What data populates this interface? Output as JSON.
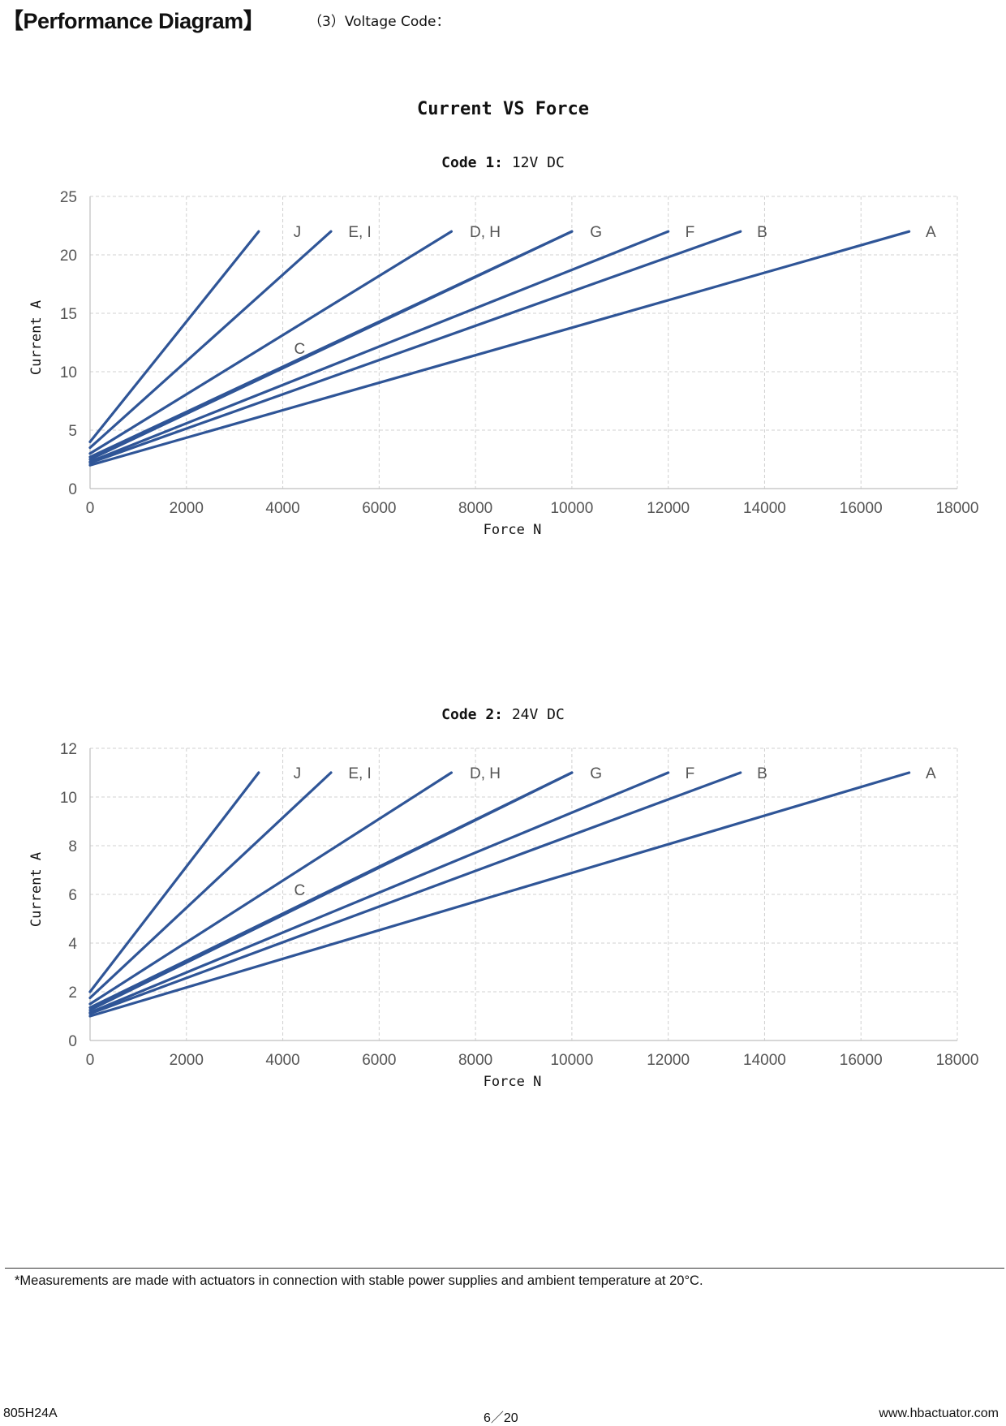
{
  "header": {
    "title": "【Performance Diagram】",
    "subtitle": "（3）Voltage Code："
  },
  "main_title": "Current VS Force",
  "chart_data": [
    {
      "type": "line",
      "title_bold": "Code 1:",
      "title_rest": " 12V DC",
      "xlabel": "Force N",
      "ylabel": "Current A",
      "xlim": [
        0,
        18000
      ],
      "ylim": [
        0,
        25
      ],
      "xticks": [
        0,
        2000,
        4000,
        6000,
        8000,
        10000,
        12000,
        14000,
        16000,
        18000
      ],
      "yticks": [
        0,
        5,
        10,
        15,
        20,
        25
      ],
      "grid": true,
      "series": [
        {
          "name": "J",
          "x": [
            0,
            3500
          ],
          "y": [
            4.0,
            22
          ]
        },
        {
          "name": "E, I",
          "x": [
            0,
            5000
          ],
          "y": [
            3.5,
            22
          ]
        },
        {
          "name": "D, H",
          "x": [
            0,
            7500
          ],
          "y": [
            3.0,
            22
          ]
        },
        {
          "name": "C",
          "x": [
            0,
            10000
          ],
          "y": [
            2.7,
            22
          ]
        },
        {
          "name": "G",
          "x": [
            0,
            10000
          ],
          "y": [
            2.5,
            22
          ]
        },
        {
          "name": "F",
          "x": [
            0,
            12000
          ],
          "y": [
            2.3,
            22
          ]
        },
        {
          "name": "B",
          "x": [
            0,
            13500
          ],
          "y": [
            2.2,
            22
          ]
        },
        {
          "name": "A",
          "x": [
            0,
            17000
          ],
          "y": [
            2.0,
            22
          ]
        }
      ],
      "annotations": [
        {
          "text": "J",
          "x": 4300,
          "y": 22
        },
        {
          "text": "E, I",
          "x": 5600,
          "y": 22
        },
        {
          "text": "D, H",
          "x": 8200,
          "y": 22
        },
        {
          "text": "G",
          "x": 10500,
          "y": 22
        },
        {
          "text": "F",
          "x": 12450,
          "y": 22
        },
        {
          "text": "B",
          "x": 13950,
          "y": 22
        },
        {
          "text": "A",
          "x": 17450,
          "y": 22
        },
        {
          "text": "C",
          "x": 4350,
          "y": 12
        }
      ]
    },
    {
      "type": "line",
      "title_bold": "Code 2:",
      "title_rest": " 24V DC",
      "xlabel": "Force N",
      "ylabel": "Current A",
      "xlim": [
        0,
        18000
      ],
      "ylim": [
        0,
        12
      ],
      "xticks": [
        0,
        2000,
        4000,
        6000,
        8000,
        10000,
        12000,
        14000,
        16000,
        18000
      ],
      "yticks": [
        0,
        2,
        4,
        6,
        8,
        10,
        12
      ],
      "grid": true,
      "series": [
        {
          "name": "J",
          "x": [
            0,
            3500
          ],
          "y": [
            2.0,
            11
          ]
        },
        {
          "name": "E, I",
          "x": [
            0,
            5000
          ],
          "y": [
            1.75,
            11
          ]
        },
        {
          "name": "D, H",
          "x": [
            0,
            7500
          ],
          "y": [
            1.5,
            11
          ]
        },
        {
          "name": "C",
          "x": [
            0,
            10000
          ],
          "y": [
            1.35,
            11
          ]
        },
        {
          "name": "G",
          "x": [
            0,
            10000
          ],
          "y": [
            1.25,
            11
          ]
        },
        {
          "name": "F",
          "x": [
            0,
            12000
          ],
          "y": [
            1.15,
            11
          ]
        },
        {
          "name": "B",
          "x": [
            0,
            13500
          ],
          "y": [
            1.1,
            11
          ]
        },
        {
          "name": "A",
          "x": [
            0,
            17000
          ],
          "y": [
            1.0,
            11
          ]
        }
      ],
      "annotations": [
        {
          "text": "J",
          "x": 4300,
          "y": 11
        },
        {
          "text": "E, I",
          "x": 5600,
          "y": 11
        },
        {
          "text": "D, H",
          "x": 8200,
          "y": 11
        },
        {
          "text": "G",
          "x": 10500,
          "y": 11
        },
        {
          "text": "F",
          "x": 12450,
          "y": 11
        },
        {
          "text": "B",
          "x": 13950,
          "y": 11
        },
        {
          "text": "A",
          "x": 17450,
          "y": 11
        },
        {
          "text": "C",
          "x": 4350,
          "y": 6.2
        }
      ]
    }
  ],
  "colors": {
    "line": "#2F5597",
    "grid": "#d0d0d0",
    "axis": "#bfbfbf"
  },
  "footnote": "*Measurements are made with actuators in connection with stable power supplies and ambient temperature at 20°C.",
  "footer": {
    "model": "805H24A",
    "page": "6／20",
    "website": "www.hbactuator.com"
  }
}
